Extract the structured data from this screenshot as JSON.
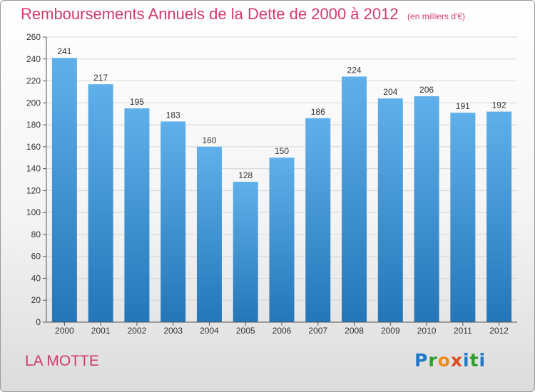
{
  "header": {
    "title": "Remboursements Annuels de la Dette de 2000 à 2012",
    "subtitle": "(en milliers d'€)"
  },
  "footer": {
    "place": "LA MOTTE",
    "logo_text": "Proxiti"
  },
  "colors": {
    "title": "#d03a6e",
    "bar_light": "#5fb0ea",
    "bar_dark": "#2576b8",
    "grid": "#d6d6d6",
    "logo": [
      "#1f78c8",
      "#2f9e2f",
      "#f08a1c",
      "#e04a1a",
      "#1f78c8",
      "#2f9e2f",
      "#1f78c8"
    ]
  },
  "chart_data": {
    "type": "bar",
    "title": "Remboursements Annuels de la Dette de 2000 à 2012",
    "subtitle": "(en milliers d'€)",
    "xlabel": "",
    "ylabel": "",
    "categories": [
      "2000",
      "2001",
      "2002",
      "2003",
      "2004",
      "2005",
      "2006",
      "2007",
      "2008",
      "2009",
      "2010",
      "2011",
      "2012"
    ],
    "values": [
      241,
      217,
      195,
      183,
      160,
      128,
      150,
      186,
      224,
      204,
      206,
      191,
      192
    ],
    "ylim": [
      0,
      260
    ],
    "yticks": [
      0,
      20,
      40,
      60,
      80,
      100,
      120,
      140,
      160,
      180,
      200,
      220,
      240,
      260
    ],
    "grid": true,
    "data_labels": true
  }
}
